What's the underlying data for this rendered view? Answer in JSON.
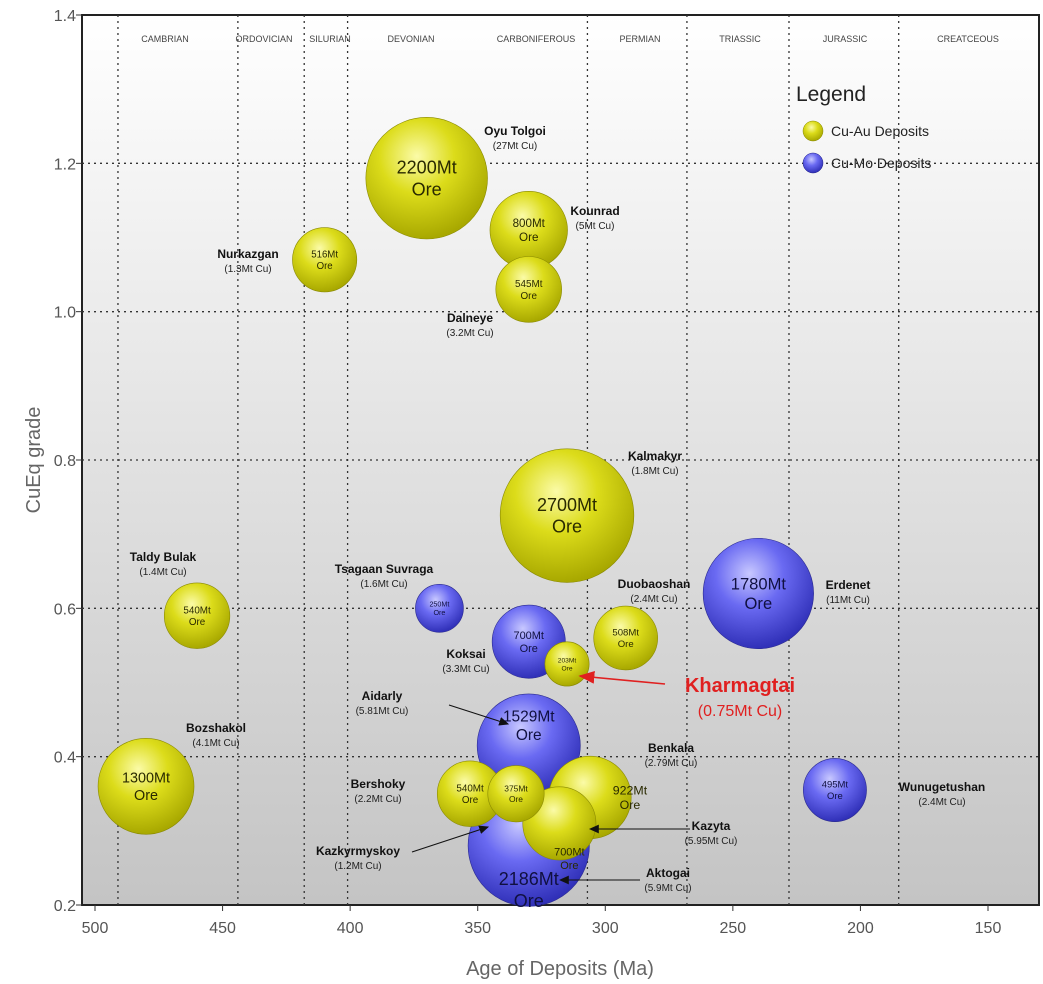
{
  "chart_data": {
    "type": "bubble",
    "xlabel": "Age of Deposits (Ma)",
    "ylabel": "CuEq grade",
    "xlim": [
      500,
      150
    ],
    "ylim": [
      0.2,
      1.4
    ],
    "x_ticks": [
      "500",
      "450",
      "400",
      "350",
      "300",
      "250",
      "200",
      "150"
    ],
    "y_ticks": [
      "0.2",
      "0.4",
      "0.6",
      "0.8",
      "1.0",
      "1.2",
      "1.4"
    ],
    "grid": "dotted",
    "legend": {
      "title": "Legend",
      "placement": "top-right",
      "items": [
        {
          "label": "Cu-Au Deposits",
          "color": "#c8c800"
        },
        {
          "label": "Cu-Mo Deposits",
          "color": "#4a4ae0"
        }
      ]
    },
    "periods": [
      {
        "name": "CAMBRIAN",
        "start": 500,
        "end": 488
      },
      {
        "name": "ORDOVICIAN",
        "start": 488,
        "end": 444
      },
      {
        "name": "SILURIAN",
        "start": 444,
        "end": 416
      },
      {
        "name": "DEVONIAN",
        "start": 416,
        "end": 359
      },
      {
        "name": "CARBONIFEROUS",
        "start": 359,
        "end": 299
      },
      {
        "name": "PERMIAN",
        "start": 299,
        "end": 251
      },
      {
        "name": "TRIASSIC",
        "start": 251,
        "end": 200
      },
      {
        "name": "JURASSIC",
        "start": 200,
        "end": 146
      },
      {
        "name": "CREATCEOUS",
        "start": 146,
        "end": 0
      }
    ],
    "period_boundaries": [
      491,
      444,
      418,
      401,
      307,
      268,
      228,
      185
    ],
    "series": [
      {
        "name": "Cu-Au Deposits",
        "color": "#c8c800",
        "points": [
          {
            "name": "Oyu Tolgoi",
            "sub": "(27Mt Cu)",
            "age": 370,
            "grade": 1.18,
            "ore_mt": 2200,
            "l1": "2200Mt",
            "l2": "Ore"
          },
          {
            "name": "Kounrad",
            "sub": "(5Mt Cu)",
            "age": 330,
            "grade": 1.11,
            "ore_mt": 800,
            "l1": "800Mt",
            "l2": "Ore"
          },
          {
            "name": "Nurkazgan",
            "sub": "(1.3Mt Cu)",
            "age": 410,
            "grade": 1.07,
            "ore_mt": 516,
            "l1": "516Mt",
            "l2": "Ore"
          },
          {
            "name": "Dalneye",
            "sub": "(3.2Mt Cu)",
            "age": 330,
            "grade": 1.03,
            "ore_mt": 545,
            "l1": "545Mt",
            "l2": "Ore"
          },
          {
            "name": "Kalmakyr",
            "sub": "(1.8Mt Cu)",
            "age": 315,
            "grade": 0.725,
            "ore_mt": 2700,
            "l1": "2700Mt",
            "l2": "Ore"
          },
          {
            "name": "Taldy Bulak",
            "sub": "(1.4Mt Cu)",
            "age": 460,
            "grade": 0.59,
            "ore_mt": 540,
            "l1": "540Mt",
            "l2": "Ore"
          },
          {
            "name": "Duobaoshan",
            "sub": "(2.4Mt Cu)",
            "age": 292,
            "grade": 0.56,
            "ore_mt": 508,
            "l1": "508Mt",
            "l2": "Ore"
          },
          {
            "name": "Kharmagtai",
            "sub": "(0.75Mt Cu)",
            "age": 315,
            "grade": 0.525,
            "ore_mt": 203,
            "l1": "203Mt",
            "l2": "Ore"
          },
          {
            "name": "Bozshakol",
            "sub": "(4.1Mt Cu)",
            "age": 480,
            "grade": 0.36,
            "ore_mt": 1300,
            "l1": "1300Mt",
            "l2": "Ore"
          },
          {
            "name": "Benkala",
            "sub": "(2.79Mt Cu)",
            "age": 306,
            "grade": 0.345,
            "ore_mt": 922,
            "l1": "922Mt",
            "l2": "Ore"
          },
          {
            "name": "Kazyta",
            "sub": "(5.95Mt Cu)",
            "age": 318,
            "grade": 0.31,
            "ore_mt": 700,
            "l1": "700Mt",
            "l2": "Ore"
          },
          {
            "name": "Bershoky",
            "sub": "(2.2Mt Cu)",
            "age": 353,
            "grade": 0.35,
            "ore_mt": 540,
            "l1": "540Mt",
            "l2": "Ore"
          },
          {
            "name": "Kazkyrmyskoy",
            "sub": "(1.2Mt Cu)",
            "age": 335,
            "grade": 0.35,
            "ore_mt": 375,
            "l1": "375Mt",
            "l2": "Ore"
          }
        ]
      },
      {
        "name": "Cu-Mo Deposits",
        "color": "#4a4ae0",
        "points": [
          {
            "name": "Erdenet",
            "sub": "(11Mt Cu)",
            "age": 240,
            "grade": 0.62,
            "ore_mt": 1780,
            "l1": "1780Mt",
            "l2": "Ore"
          },
          {
            "name": "Tsagaan Suvraga",
            "sub": "(1.6Mt Cu)",
            "age": 365,
            "grade": 0.6,
            "ore_mt": 250,
            "l1": "250Mt",
            "l2": "Ore"
          },
          {
            "name": "Koksai",
            "sub": "(3.3Mt Cu)",
            "age": 330,
            "grade": 0.555,
            "ore_mt": 700,
            "l1": "700Mt",
            "l2": "Ore"
          },
          {
            "name": "Aidarly",
            "sub": "(5.81Mt Cu)",
            "age": 330,
            "grade": 0.415,
            "ore_mt": 1529,
            "l1": "1529Mt",
            "l2": "Ore"
          },
          {
            "name": "Wunugetushan",
            "sub": "(2.4Mt Cu)",
            "age": 210,
            "grade": 0.355,
            "ore_mt": 495,
            "l1": "495Mt",
            "l2": "Ore"
          },
          {
            "name": "Aktogai",
            "sub": "(5.9Mt Cu)",
            "age": 330,
            "grade": 0.28,
            "ore_mt": 2186,
            "l1": "2186Mt",
            "l2": "Ore"
          }
        ]
      }
    ]
  }
}
